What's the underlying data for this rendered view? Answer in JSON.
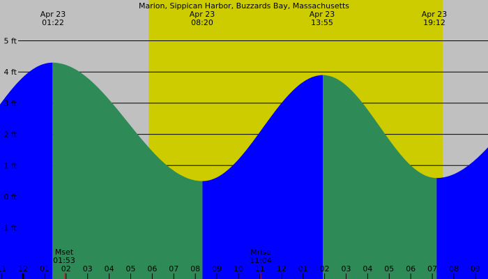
{
  "chart_data": {
    "type": "area",
    "title": "Marion, Sippican Harbor, Buzzards Bay, Massachusetts",
    "xlabel": "",
    "ylabel": "",
    "y_unit": "ft",
    "ylim": [
      -1.5,
      6.3
    ],
    "y_ticks": [
      {
        "label": "5 ft",
        "value": 5
      },
      {
        "label": "4 ft",
        "value": 4
      },
      {
        "label": "3 ft",
        "value": 3
      },
      {
        "label": "2 ft",
        "value": 2
      },
      {
        "label": "1 ft",
        "value": 1
      },
      {
        "label": "0 ft",
        "value": 0
      },
      {
        "label": "-1 ft",
        "value": -1
      }
    ],
    "grid": true,
    "x_hour_ticks": [
      "11",
      "12",
      "01",
      "02",
      "03",
      "04",
      "05",
      "06",
      "07",
      "08",
      "09",
      "10",
      "11",
      "12",
      "01",
      "02",
      "03",
      "04",
      "05",
      "06",
      "07",
      "08",
      "09"
    ],
    "x_tick_start_hour": -1,
    "tide_events": [
      {
        "type": "high",
        "date": "Apr 23",
        "time": "01:22",
        "height_ft": 4.3
      },
      {
        "type": "low",
        "date": "Apr 23",
        "time": "08:20",
        "height_ft": 0.5
      },
      {
        "type": "high",
        "date": "Apr 23",
        "time": "13:55",
        "height_ft": 3.9
      },
      {
        "type": "low",
        "date": "Apr 23",
        "time": "19:12",
        "height_ft": 0.6
      }
    ],
    "series": [
      {
        "name": "Tide height (ft)",
        "points": [
          {
            "hour": -1.07,
            "ft": 2.7
          },
          {
            "hour": 1.37,
            "ft": 4.3
          },
          {
            "hour": 8.33,
            "ft": 0.5
          },
          {
            "hour": 13.92,
            "ft": 3.9
          },
          {
            "hour": 19.2,
            "ft": 0.6
          },
          {
            "hour": 21.6,
            "ft": 0.95
          }
        ]
      }
    ],
    "daylight": {
      "start_hour": 5.83,
      "end_hour": 19.48
    },
    "moon_events": [
      {
        "label": "Mset",
        "time": "01:53"
      },
      {
        "label": "Mrise",
        "time": "11:04"
      }
    ],
    "colors": {
      "background_night": "#c0c0c0",
      "background_day": "#cccc00",
      "rising": "#0000ff",
      "falling": "#2e8b57",
      "grid": "#000000",
      "moon_marker": "#ff0000"
    }
  },
  "header": {
    "title": "Marion, Sippican Harbor, Buzzards Bay, Massachusetts",
    "events": [
      {
        "date": "Apr 23",
        "time": "01:22"
      },
      {
        "date": "Apr 23",
        "time": "08:20"
      },
      {
        "date": "Apr 23",
        "time": "13:55"
      },
      {
        "date": "Apr 23",
        "time": "19:12"
      }
    ]
  },
  "moon": [
    {
      "label": "Mset",
      "time": "01:53"
    },
    {
      "label": "Mrise",
      "time": "11:04"
    }
  ]
}
